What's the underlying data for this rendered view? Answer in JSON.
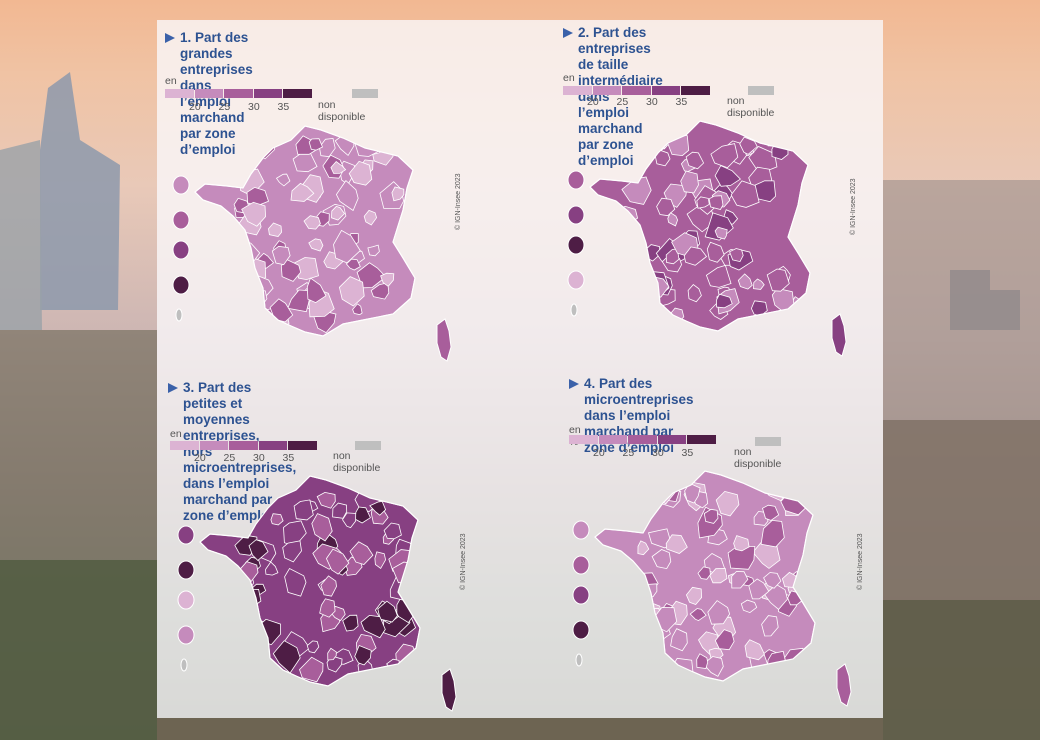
{
  "legend": {
    "unit": "en %",
    "ticks": [
      "20",
      "25",
      "30",
      "35"
    ],
    "na_label": "non disponible",
    "colors": [
      "#dcb3d3",
      "#c58bbc",
      "#a85e9b",
      "#874082",
      "#4e1d45"
    ]
  },
  "copyright": "© IGN-Insee 2023",
  "maps": [
    {
      "title": "1. Part des grandes entreprises dans\nl’emploi marchand par zone d’emploi",
      "fill_level": 1
    },
    {
      "title": "2. Part des entreprises de taille\nintermédiaire dans l’emploi marchand\npar zone d’emploi",
      "fill_level": 2
    },
    {
      "title": "3. Part des petites et moyennes entreprises,\nhors microentreprises, dans l’emploi\nmarchand par zone d’emploi",
      "fill_level": 3
    },
    {
      "title": "4. Part des microentreprises dans l’emploi\nmarchand par zone d’emploi",
      "fill_level": 1
    }
  ]
}
